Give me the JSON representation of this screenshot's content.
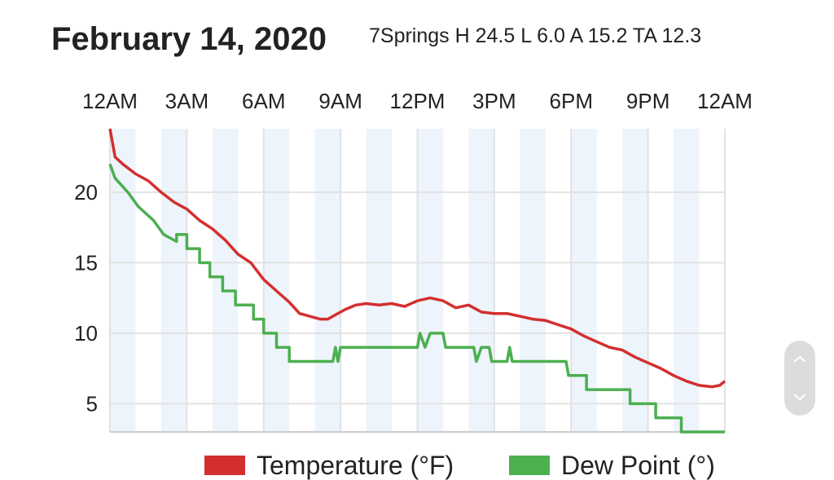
{
  "header": {
    "date": "February 14, 2020",
    "stats": "7Springs H 24.5 L 6.0 A 15.2 TA 12.3"
  },
  "colors": {
    "temperature": "#d32f2f",
    "dew_point": "#4caf50",
    "band": "#edf4fb",
    "grid": "#e2e2e2"
  },
  "chart_data": {
    "type": "line",
    "x_ticks": [
      "12AM",
      "3AM",
      "6AM",
      "9AM",
      "12PM",
      "3PM",
      "6PM",
      "9PM",
      "12AM"
    ],
    "y_ticks": [
      "5",
      "10",
      "15",
      "20"
    ],
    "ylim": [
      3,
      24.5
    ],
    "xlim_hours": [
      0,
      24
    ],
    "grid": true,
    "legend_position": "bottom",
    "series": [
      {
        "name": "Temperature (°F)",
        "points": [
          [
            0,
            24.5
          ],
          [
            0.2,
            22.5
          ],
          [
            0.5,
            22.0
          ],
          [
            1.0,
            21.3
          ],
          [
            1.5,
            20.8
          ],
          [
            2.0,
            20.0
          ],
          [
            2.5,
            19.3
          ],
          [
            3.0,
            18.8
          ],
          [
            3.5,
            18.0
          ],
          [
            4.0,
            17.4
          ],
          [
            4.5,
            16.6
          ],
          [
            5.0,
            15.6
          ],
          [
            5.5,
            15.0
          ],
          [
            6.0,
            13.8
          ],
          [
            6.5,
            13.0
          ],
          [
            7.0,
            12.2
          ],
          [
            7.4,
            11.4
          ],
          [
            7.8,
            11.2
          ],
          [
            8.2,
            11.0
          ],
          [
            8.5,
            11.0
          ],
          [
            8.8,
            11.3
          ],
          [
            9.2,
            11.7
          ],
          [
            9.6,
            12.0
          ],
          [
            10.0,
            12.1
          ],
          [
            10.5,
            12.0
          ],
          [
            11.0,
            12.1
          ],
          [
            11.5,
            11.9
          ],
          [
            12.0,
            12.3
          ],
          [
            12.5,
            12.5
          ],
          [
            13.0,
            12.3
          ],
          [
            13.5,
            11.8
          ],
          [
            14.0,
            12.0
          ],
          [
            14.5,
            11.5
          ],
          [
            15.0,
            11.4
          ],
          [
            15.5,
            11.4
          ],
          [
            16.0,
            11.2
          ],
          [
            16.5,
            11.0
          ],
          [
            17.0,
            10.9
          ],
          [
            17.5,
            10.6
          ],
          [
            18.0,
            10.3
          ],
          [
            18.5,
            9.8
          ],
          [
            19.0,
            9.4
          ],
          [
            19.5,
            9.0
          ],
          [
            20.0,
            8.8
          ],
          [
            20.5,
            8.3
          ],
          [
            21.0,
            7.9
          ],
          [
            21.5,
            7.5
          ],
          [
            22.0,
            7.0
          ],
          [
            22.5,
            6.6
          ],
          [
            23.0,
            6.3
          ],
          [
            23.5,
            6.2
          ],
          [
            23.8,
            6.3
          ],
          [
            24.0,
            6.6
          ]
        ]
      },
      {
        "name": "Dew Point (°)",
        "points": [
          [
            0,
            22.0
          ],
          [
            0.2,
            21.0
          ],
          [
            0.7,
            20.0
          ],
          [
            1.1,
            19.0
          ],
          [
            1.7,
            18.0
          ],
          [
            2.1,
            17.0
          ],
          [
            2.6,
            16.5
          ],
          [
            2.6,
            17.0
          ],
          [
            3.0,
            17.0
          ],
          [
            3.0,
            16.0
          ],
          [
            3.5,
            16.0
          ],
          [
            3.5,
            15.0
          ],
          [
            3.9,
            15.0
          ],
          [
            3.9,
            14.0
          ],
          [
            4.4,
            14.0
          ],
          [
            4.4,
            13.0
          ],
          [
            4.9,
            13.0
          ],
          [
            4.9,
            12.0
          ],
          [
            5.6,
            12.0
          ],
          [
            5.6,
            11.0
          ],
          [
            6.0,
            11.0
          ],
          [
            6.0,
            10.0
          ],
          [
            6.5,
            10.0
          ],
          [
            6.5,
            9.0
          ],
          [
            7.0,
            9.0
          ],
          [
            7.0,
            8.0
          ],
          [
            8.7,
            8.0
          ],
          [
            8.8,
            9.0
          ],
          [
            8.9,
            8.0
          ],
          [
            9.0,
            9.0
          ],
          [
            12.0,
            9.0
          ],
          [
            12.1,
            10.0
          ],
          [
            12.3,
            9.0
          ],
          [
            12.5,
            10.0
          ],
          [
            13.0,
            10.0
          ],
          [
            13.1,
            9.0
          ],
          [
            14.2,
            9.0
          ],
          [
            14.3,
            8.0
          ],
          [
            14.5,
            9.0
          ],
          [
            14.8,
            9.0
          ],
          [
            14.9,
            8.0
          ],
          [
            15.5,
            8.0
          ],
          [
            15.6,
            9.0
          ],
          [
            15.7,
            8.0
          ],
          [
            17.8,
            8.0
          ],
          [
            17.9,
            7.0
          ],
          [
            18.6,
            7.0
          ],
          [
            18.6,
            6.0
          ],
          [
            20.3,
            6.0
          ],
          [
            20.3,
            5.0
          ],
          [
            21.3,
            5.0
          ],
          [
            21.3,
            4.0
          ],
          [
            22.3,
            4.0
          ],
          [
            22.3,
            3.0
          ],
          [
            24.0,
            3.0
          ]
        ]
      }
    ]
  }
}
